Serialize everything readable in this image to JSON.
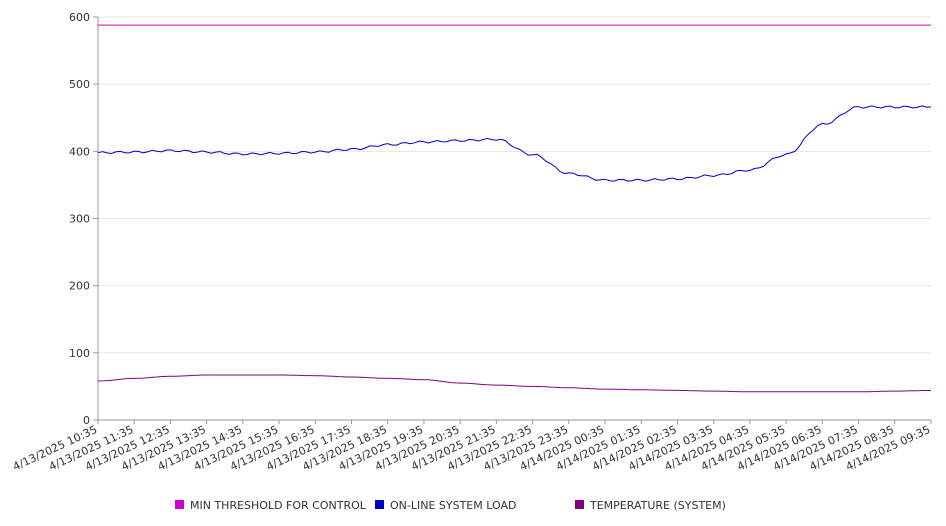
{
  "chart_data": {
    "type": "line",
    "title": "",
    "xlabel": "",
    "ylabel": "",
    "ylim": [
      0,
      600
    ],
    "y_ticks": [
      0,
      100,
      200,
      300,
      400,
      500,
      600
    ],
    "grid": true,
    "legend_position": "bottom",
    "categories": [
      "4/13/2025 10:35",
      "4/13/2025 11:35",
      "4/13/2025 12:35",
      "4/13/2025 13:35",
      "4/13/2025 14:35",
      "4/13/2025 15:35",
      "4/13/2025 16:35",
      "4/13/2025 17:35",
      "4/13/2025 18:35",
      "4/13/2025 19:35",
      "4/13/2025 20:35",
      "4/13/2025 21:35",
      "4/13/2025 22:35",
      "4/13/2025 23:35",
      "4/14/2025 00:35",
      "4/14/2025 01:35",
      "4/14/2025 02:35",
      "4/14/2025 03:35",
      "4/14/2025 04:35",
      "4/14/2025 05:35",
      "4/14/2025 06:35",
      "4/14/2025 07:35",
      "4/14/2025 08:35",
      "4/14/2025 09:35"
    ],
    "series": [
      {
        "name": "MIN THRESHOLD FOR CONTROL",
        "color": "#cc00cc",
        "values": [
          588,
          588,
          588,
          588,
          588,
          588,
          588,
          588,
          588,
          588,
          588,
          588,
          588,
          588,
          588,
          588,
          588,
          588,
          588,
          588,
          588,
          588,
          588,
          588
        ]
      },
      {
        "name": "ON-LINE SYSTEM LOAD",
        "color": "#0000cc",
        "values": [
          398,
          399,
          401,
          399,
          396,
          397,
          399,
          403,
          410,
          414,
          416,
          418,
          395,
          367,
          357,
          357,
          359,
          364,
          372,
          395,
          440,
          466,
          466,
          466
        ]
      },
      {
        "name": "TEMPERATURE (SYSTEM)",
        "color": "#800080",
        "values": [
          58,
          62,
          65,
          67,
          67,
          67,
          66,
          64,
          62,
          60,
          55,
          52,
          50,
          48,
          46,
          45,
          44,
          43,
          42,
          42,
          42,
          42,
          43,
          44
        ]
      }
    ]
  }
}
